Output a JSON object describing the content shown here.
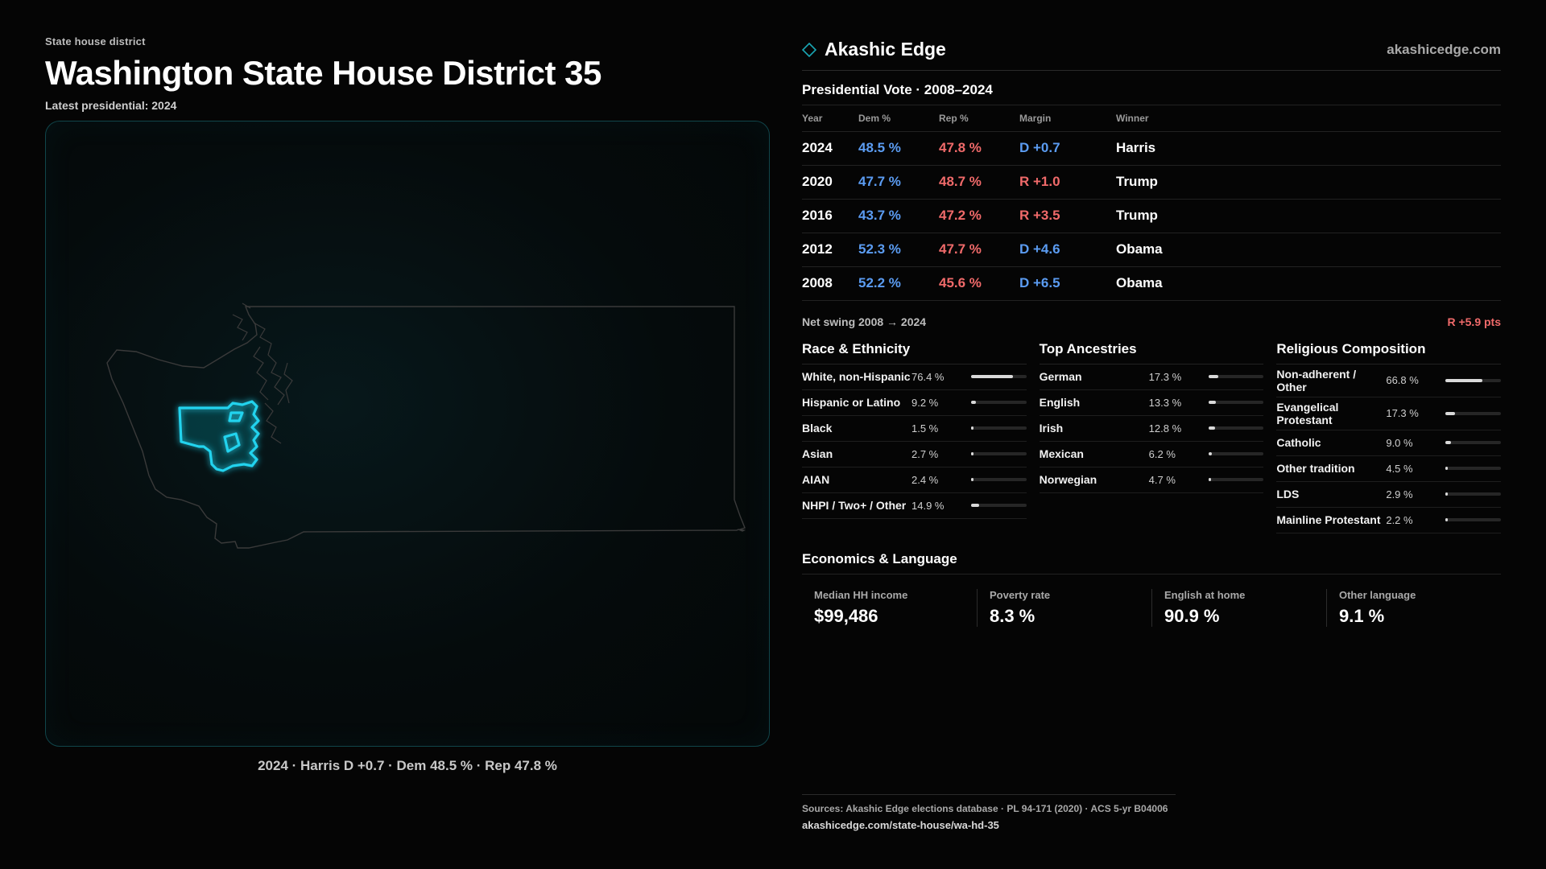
{
  "header": {
    "kicker": "State house district",
    "title": "Washington State House District 35",
    "latest": "Latest presidential: 2024"
  },
  "map": {
    "caption": "2024 · Harris D +0.7 · Dem 48.5 % · Rep 47.8 %",
    "highlight_color": "#22d3ee"
  },
  "brand": {
    "name": "Akashic Edge",
    "url": "akashicedge.com",
    "logo_icon": "diamond-icon"
  },
  "votes": {
    "title": "Presidential Vote · 2008–2024",
    "headers": {
      "year": "Year",
      "dem": "Dem %",
      "rep": "Rep %",
      "margin": "Margin",
      "winner": "Winner"
    },
    "rows": [
      {
        "year": "2024",
        "dem": "48.5 %",
        "rep": "47.8 %",
        "margin": "D +0.7",
        "party": "D",
        "winner": "Harris"
      },
      {
        "year": "2020",
        "dem": "47.7 %",
        "rep": "48.7 %",
        "margin": "R +1.0",
        "party": "R",
        "winner": "Trump"
      },
      {
        "year": "2016",
        "dem": "43.7 %",
        "rep": "47.2 %",
        "margin": "R +3.5",
        "party": "R",
        "winner": "Trump"
      },
      {
        "year": "2012",
        "dem": "52.3 %",
        "rep": "47.7 %",
        "margin": "D +4.6",
        "party": "D",
        "winner": "Obama"
      },
      {
        "year": "2008",
        "dem": "52.2 %",
        "rep": "45.6 %",
        "margin": "D +6.5",
        "party": "D",
        "winner": "Obama"
      }
    ],
    "swing_label": "Net swing 2008 → 2024",
    "swing_value": "R +5.9 pts"
  },
  "race": {
    "title": "Race & Ethnicity",
    "items": [
      {
        "label": "White, non-Hispanic",
        "value": "76.4 %",
        "pct": 76.4
      },
      {
        "label": "Hispanic or Latino",
        "value": "9.2 %",
        "pct": 9.2
      },
      {
        "label": "Black",
        "value": "1.5 %",
        "pct": 1.5
      },
      {
        "label": "Asian",
        "value": "2.7 %",
        "pct": 2.7
      },
      {
        "label": "AIAN",
        "value": "2.4 %",
        "pct": 2.4
      },
      {
        "label": "NHPI / Two+ / Other",
        "value": "14.9 %",
        "pct": 14.9
      }
    ]
  },
  "ancestry": {
    "title": "Top Ancestries",
    "items": [
      {
        "label": "German",
        "value": "17.3 %",
        "pct": 17.3
      },
      {
        "label": "English",
        "value": "13.3 %",
        "pct": 13.3
      },
      {
        "label": "Irish",
        "value": "12.8 %",
        "pct": 12.8
      },
      {
        "label": "Mexican",
        "value": "6.2 %",
        "pct": 6.2
      },
      {
        "label": "Norwegian",
        "value": "4.7 %",
        "pct": 4.7
      }
    ]
  },
  "religion": {
    "title": "Religious Composition",
    "items": [
      {
        "label": "Non-adherent / Other",
        "value": "66.8 %",
        "pct": 66.8
      },
      {
        "label": "Evangelical Protestant",
        "value": "17.3 %",
        "pct": 17.3
      },
      {
        "label": "Catholic",
        "value": "9.0 %",
        "pct": 9.0
      },
      {
        "label": "Other tradition",
        "value": "4.5 %",
        "pct": 4.5
      },
      {
        "label": "LDS",
        "value": "2.9 %",
        "pct": 2.9
      },
      {
        "label": "Mainline Protestant",
        "value": "2.2 %",
        "pct": 2.2
      }
    ]
  },
  "economics": {
    "title": "Economics & Language",
    "cells": [
      {
        "label": "Median HH income",
        "value": "$99,486"
      },
      {
        "label": "Poverty rate",
        "value": "8.3 %"
      },
      {
        "label": "English at home",
        "value": "90.9 %"
      },
      {
        "label": "Other language",
        "value": "9.1 %"
      }
    ]
  },
  "sources": {
    "text": "Sources: Akashic Edge elections database · PL 94-171 (2020) · ACS 5-yr B04006",
    "url": "akashicedge.com/state-house/wa-hd-35"
  },
  "colors": {
    "dem": "#5b9cf2",
    "rep": "#f06a6a",
    "accent": "#22d3ee"
  }
}
